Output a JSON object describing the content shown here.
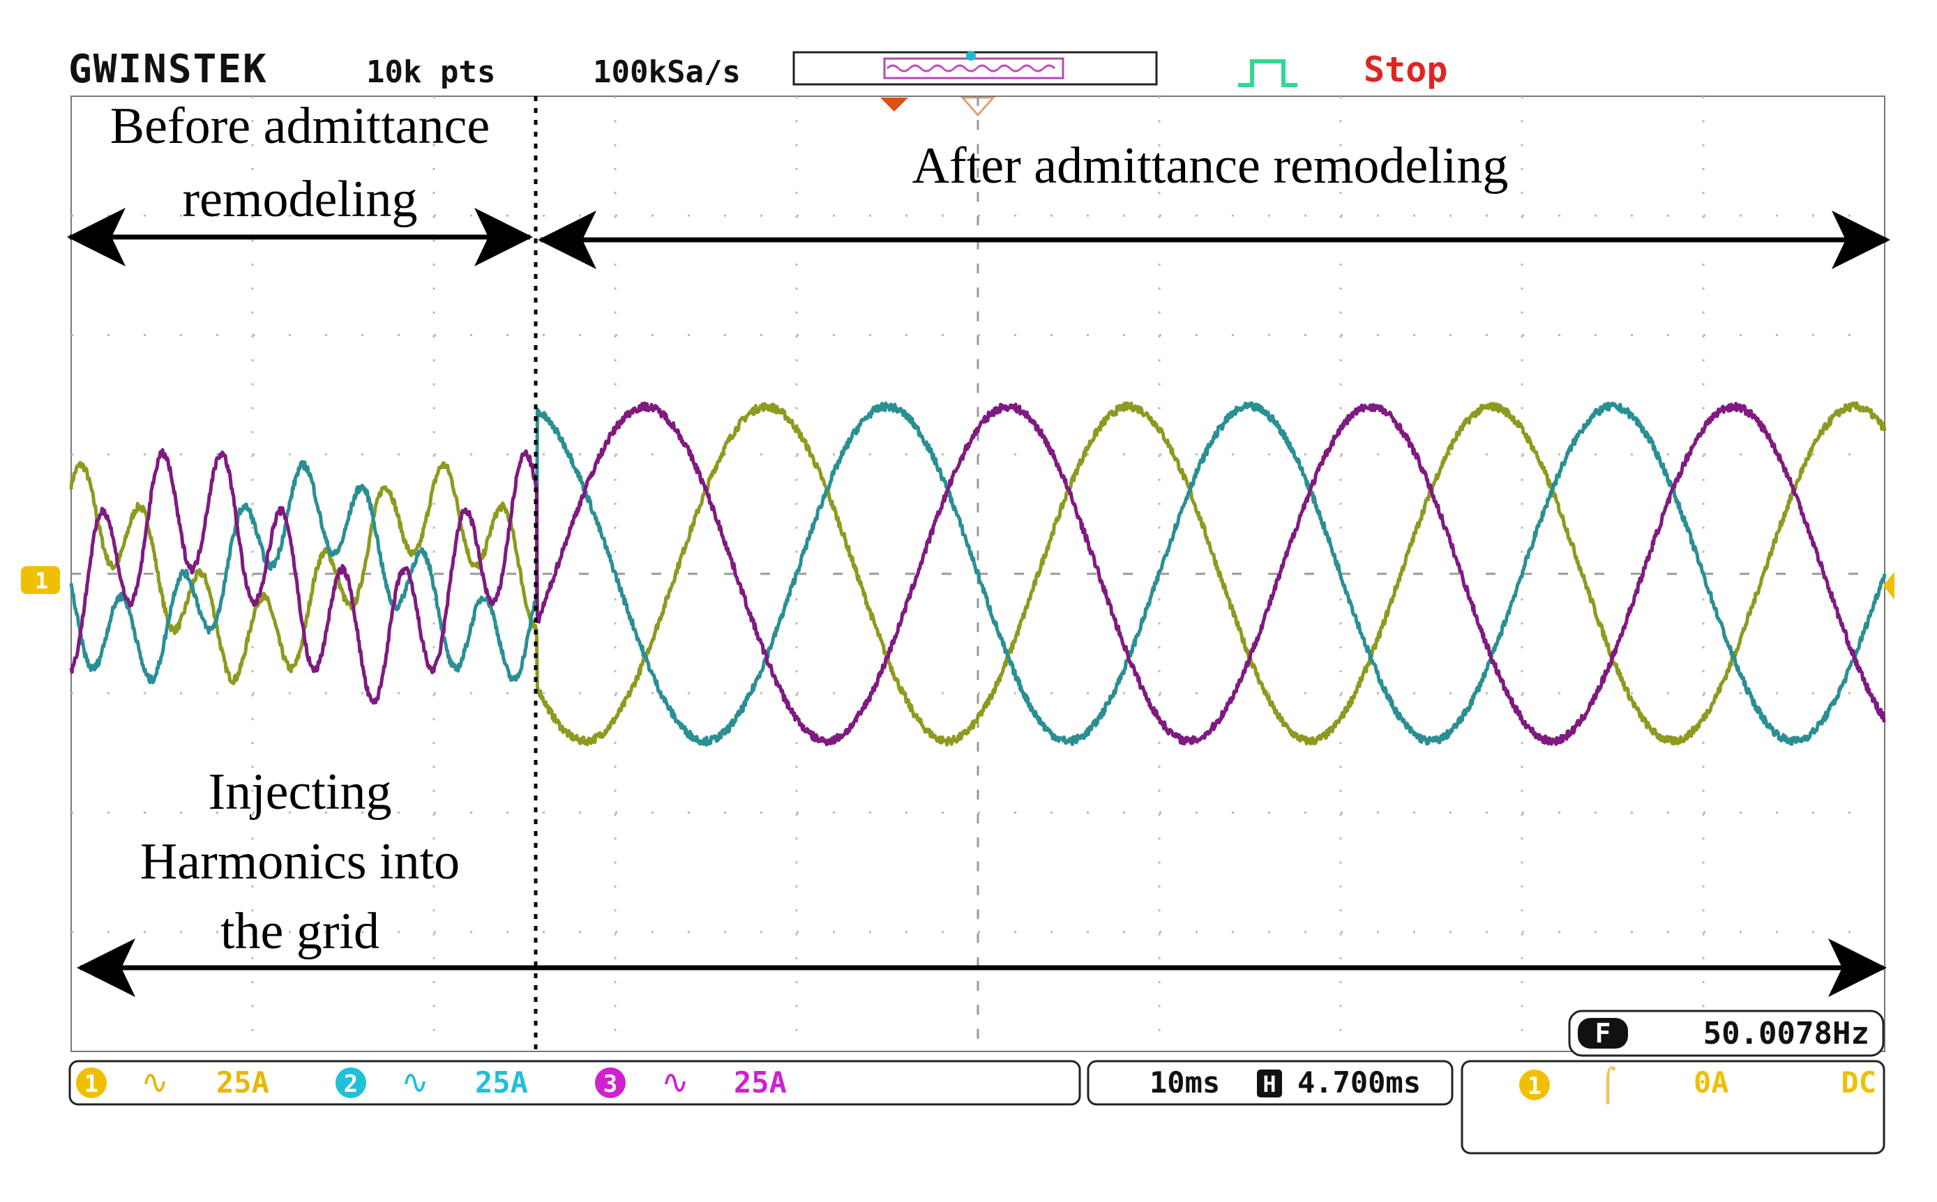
{
  "header": {
    "brand": "GWINSTEK",
    "record_length": "10k pts",
    "sample_rate": "100kSa/s",
    "run_state": "Stop"
  },
  "annotations": {
    "before_line1": "Before admittance",
    "before_line2": "remodeling",
    "after": "After admittance remodeling",
    "inject_line1": "Injecting",
    "inject_line2": "Harmonics into",
    "inject_line3": "the grid"
  },
  "channel_marker": "1",
  "frequency": {
    "badge": "F",
    "value": "50.0078Hz"
  },
  "status_bar": {
    "channels": [
      {
        "number": "1",
        "coupling": "∿",
        "scale": "25A",
        "color": "#e6b800"
      },
      {
        "number": "2",
        "coupling": "∿",
        "scale": "25A",
        "color": "#20c0d8"
      },
      {
        "number": "3",
        "coupling": "∿",
        "scale": "25A",
        "color": "#d020d0"
      }
    ],
    "timebase": "10ms",
    "position_badge": "H",
    "position": "4.700ms",
    "trigger": {
      "source": "1",
      "slope": "⌠",
      "level": "0A",
      "coupling": "DC"
    }
  },
  "colors": {
    "grid": "#b8b8b8",
    "trace_yellow": "#8d9a1e",
    "trace_teal": "#2a8f93",
    "trace_purple": "#7f1a80",
    "stop": "#e02424",
    "trigger_marker": "#e05010"
  },
  "chart_data": {
    "type": "line",
    "x_unit": "ms",
    "time_per_div_ms": 10,
    "grid_divisions": {
      "x": 10,
      "y": 8
    },
    "current_per_div_A": 25,
    "xlim_ms": [
      0,
      100
    ],
    "remodeling_instant_ms": 25.7,
    "fundamental_hz": 50.0078,
    "series": [
      {
        "color": "#8d9a1e",
        "before": {
          "fundamental_peak_A": 14,
          "phase_deg": 90,
          "harmonic_peak_A": 9,
          "harmonic_hz": 300,
          "harmonic_phase_deg": 30
        },
        "after": {
          "peak_A": 35,
          "phase_deg": 120
        }
      },
      {
        "color": "#2a8f93",
        "before": {
          "fundamental_peak_A": 14,
          "phase_deg": 210,
          "harmonic_peak_A": 9,
          "harmonic_hz": 300,
          "harmonic_phase_deg": 150
        },
        "after": {
          "peak_A": 35,
          "phase_deg": 0
        }
      },
      {
        "color": "#7f1a80",
        "before": {
          "fundamental_peak_A": 14,
          "phase_deg": 330,
          "harmonic_peak_A": 13,
          "harmonic_hz": 300,
          "harmonic_phase_deg": 270
        },
        "after": {
          "peak_A": 35,
          "phase_deg": 240
        }
      }
    ]
  }
}
